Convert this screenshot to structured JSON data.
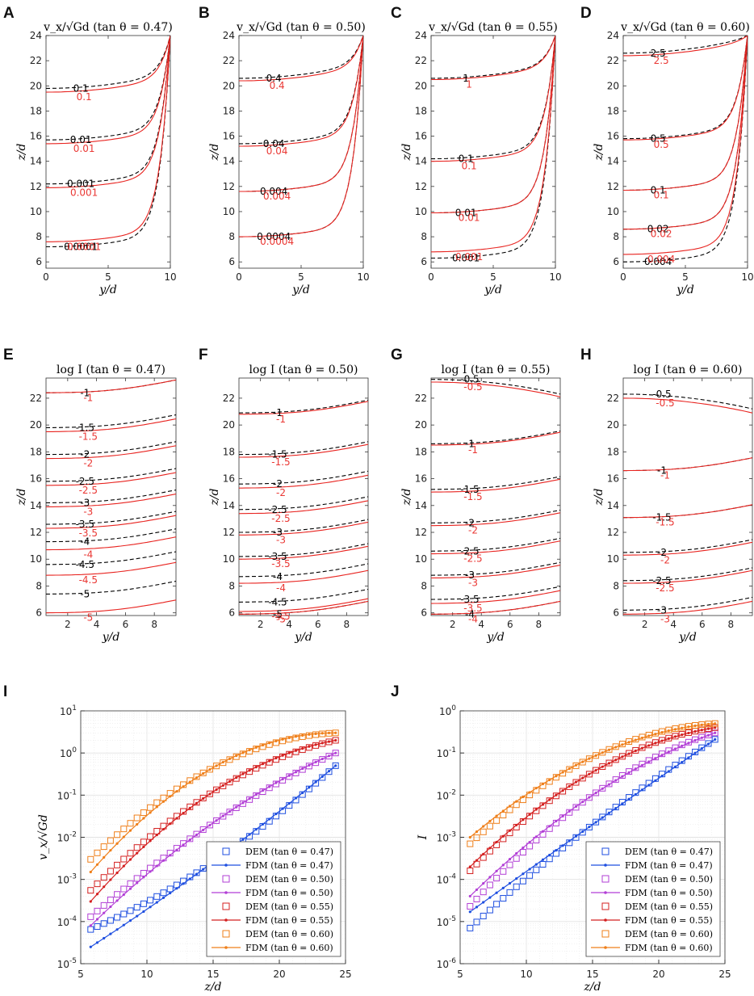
{
  "colors": {
    "sim_line": "#e8231f",
    "model_line": "#000000",
    "series": [
      "#1f4fe0",
      "#b23fd6",
      "#d42020",
      "#ef7f1a"
    ]
  },
  "chart_data": [
    {
      "id": "A",
      "type": "line",
      "subtype": "contour",
      "title": "v_x/√Gd  (tan θ = 0.47)",
      "xlabel": "y/d",
      "ylabel": "z/d",
      "xlim": [
        0,
        10
      ],
      "ylim": [
        5.5,
        24
      ],
      "xticks": [
        "0",
        "5",
        "10"
      ],
      "yticks": [
        "6",
        "8",
        "10",
        "12",
        "14",
        "16",
        "18",
        "20",
        "22",
        "24"
      ],
      "contours": [
        {
          "level_label": "0.1",
          "z_base": 19.5,
          "z_base_dashed": 19.8
        },
        {
          "level_label": "0.01",
          "z_base": 15.4,
          "z_base_dashed": 15.7
        },
        {
          "level_label": "0.001",
          "z_base": 11.9,
          "z_base_dashed": 12.2
        },
        {
          "level_label": "0.0001",
          "z_base": 7.6,
          "z_base_dashed": 7.2
        }
      ]
    },
    {
      "id": "B",
      "type": "line",
      "subtype": "contour",
      "title": "v_x/√Gd  (tan θ = 0.50)",
      "xlabel": "y/d",
      "ylabel": "z/d",
      "xlim": [
        0,
        10
      ],
      "ylim": [
        5.5,
        24
      ],
      "xticks": [
        "0",
        "5",
        "10"
      ],
      "yticks": [
        "6",
        "8",
        "10",
        "12",
        "14",
        "16",
        "18",
        "20",
        "22",
        "24"
      ],
      "contours": [
        {
          "level_label": "0.4",
          "z_base": 20.4,
          "z_base_dashed": 20.6
        },
        {
          "level_label": "0.04",
          "z_base": 15.2,
          "z_base_dashed": 15.4
        },
        {
          "level_label": "0.004",
          "z_base": 11.6,
          "z_base_dashed": 11.6
        },
        {
          "level_label": "0.0004",
          "z_base": 8.0,
          "z_base_dashed": 8.0
        }
      ]
    },
    {
      "id": "C",
      "type": "line",
      "subtype": "contour",
      "title": "v_x/√Gd  (tan θ = 0.55)",
      "xlabel": "y/d",
      "ylabel": "z/d",
      "xlim": [
        0,
        10
      ],
      "ylim": [
        5.5,
        24
      ],
      "xticks": [
        "0",
        "5",
        "10"
      ],
      "yticks": [
        "6",
        "8",
        "10",
        "12",
        "14",
        "16",
        "18",
        "20",
        "22",
        "24"
      ],
      "contours": [
        {
          "level_label": "1",
          "z_base": 20.5,
          "z_base_dashed": 20.6
        },
        {
          "level_label": "0.1",
          "z_base": 14.0,
          "z_base_dashed": 14.2
        },
        {
          "level_label": "0.01",
          "z_base": 9.9,
          "z_base_dashed": 9.9
        },
        {
          "level_label": "0.001",
          "z_base": 6.8,
          "z_base_dashed": 6.3
        }
      ]
    },
    {
      "id": "D",
      "type": "line",
      "subtype": "contour",
      "title": "v_x/√Gd  (tan θ = 0.60)",
      "xlabel": "y/d",
      "ylabel": "z/d",
      "xlim": [
        0,
        10
      ],
      "ylim": [
        5.5,
        24
      ],
      "xticks": [
        "0",
        "5",
        "10"
      ],
      "yticks": [
        "6",
        "8",
        "10",
        "12",
        "14",
        "16",
        "18",
        "20",
        "22",
        "24"
      ],
      "contours": [
        {
          "level_label": "2.5",
          "z_base": 22.4,
          "z_base_dashed": 22.6
        },
        {
          "level_label": "0.5",
          "z_base": 15.7,
          "z_base_dashed": 15.8
        },
        {
          "level_label": "0.1",
          "z_base": 11.7,
          "z_base_dashed": 11.7
        },
        {
          "level_label": "0.02",
          "z_base": 8.6,
          "z_base_dashed": 8.6
        },
        {
          "level_label": "0.004",
          "z_base": 6.6,
          "z_base_dashed": 6.0
        }
      ]
    },
    {
      "id": "E",
      "type": "line",
      "subtype": "contour",
      "title": "log I (tan θ = 0.47)",
      "xlabel": "y/d",
      "ylabel": "z/d",
      "xlim": [
        0.5,
        9.5
      ],
      "ylim": [
        5.8,
        23.5
      ],
      "xticks": [
        "2",
        "4",
        "6",
        "8"
      ],
      "yticks": [
        "6",
        "8",
        "10",
        "12",
        "14",
        "16",
        "18",
        "20",
        "22"
      ],
      "contours": [
        {
          "level_label": "-1",
          "z_base": 22.4,
          "z_base_dashed": 22.4
        },
        {
          "level_label": "-1.5",
          "z_base": 19.5,
          "z_base_dashed": 19.8
        },
        {
          "level_label": "-2",
          "z_base": 17.5,
          "z_base_dashed": 17.8
        },
        {
          "level_label": "-2.5",
          "z_base": 15.5,
          "z_base_dashed": 15.8
        },
        {
          "level_label": "-3",
          "z_base": 13.9,
          "z_base_dashed": 14.2
        },
        {
          "level_label": "-3.5",
          "z_base": 12.3,
          "z_base_dashed": 12.6
        },
        {
          "level_label": "-4",
          "z_base": 10.7,
          "z_base_dashed": 11.3
        },
        {
          "level_label": "-4.5",
          "z_base": 8.8,
          "z_base_dashed": 9.6
        },
        {
          "level_label": "-5",
          "z_base": 6.0,
          "z_base_dashed": 7.4
        }
      ]
    },
    {
      "id": "F",
      "type": "line",
      "subtype": "contour",
      "title": "log I (tan θ = 0.50)",
      "xlabel": "y/d",
      "ylabel": "z/d",
      "xlim": [
        0.5,
        9.5
      ],
      "ylim": [
        5.8,
        23.5
      ],
      "xticks": [
        "2",
        "4",
        "6",
        "8"
      ],
      "yticks": [
        "6",
        "8",
        "10",
        "12",
        "14",
        "16",
        "18",
        "20",
        "22"
      ],
      "contours": [
        {
          "level_label": "-1",
          "z_base": 20.8,
          "z_base_dashed": 20.9
        },
        {
          "level_label": "-1.5",
          "z_base": 17.6,
          "z_base_dashed": 17.8
        },
        {
          "level_label": "-2",
          "z_base": 15.3,
          "z_base_dashed": 15.6
        },
        {
          "level_label": "-2.5",
          "z_base": 13.4,
          "z_base_dashed": 13.7
        },
        {
          "level_label": "-3",
          "z_base": 11.8,
          "z_base_dashed": 12.0
        },
        {
          "level_label": "-3.5",
          "z_base": 10.0,
          "z_base_dashed": 10.2
        },
        {
          "level_label": "-4",
          "z_base": 8.2,
          "z_base_dashed": 8.7
        },
        {
          "level_label": "-4.5",
          "z_base": 6.1,
          "z_base_dashed": 6.8
        },
        {
          "level_label": "-5",
          "z_base": 5.9,
          "z_base_dashed": 5.9
        }
      ]
    },
    {
      "id": "G",
      "type": "line",
      "subtype": "contour",
      "title": "log I (tan θ = 0.55)",
      "xlabel": "y/d",
      "ylabel": "z/d",
      "xlim": [
        0.5,
        9.5
      ],
      "ylim": [
        5.8,
        23.5
      ],
      "xticks": [
        "2",
        "4",
        "6",
        "8"
      ],
      "yticks": [
        "6",
        "8",
        "10",
        "12",
        "14",
        "16",
        "18",
        "20",
        "22"
      ],
      "contours": [
        {
          "level_label": "-0.5",
          "z_base": 23.2,
          "z_base_dashed": 23.4
        },
        {
          "level_label": "-1",
          "z_base": 18.5,
          "z_base_dashed": 18.6
        },
        {
          "level_label": "-1.5",
          "z_base": 15.0,
          "z_base_dashed": 15.2
        },
        {
          "level_label": "-2",
          "z_base": 12.5,
          "z_base_dashed": 12.7
        },
        {
          "level_label": "-2.5",
          "z_base": 10.4,
          "z_base_dashed": 10.6
        },
        {
          "level_label": "-3",
          "z_base": 8.6,
          "z_base_dashed": 8.8
        },
        {
          "level_label": "-3.5",
          "z_base": 6.7,
          "z_base_dashed": 7.0
        },
        {
          "level_label": "-4",
          "z_base": 5.9,
          "z_base_dashed": 5.9
        }
      ]
    },
    {
      "id": "H",
      "type": "line",
      "subtype": "contour",
      "title": "log I (tan θ = 0.60)",
      "xlabel": "y/d",
      "ylabel": "z/d",
      "xlim": [
        0.5,
        9.5
      ],
      "ylim": [
        5.8,
        23.5
      ],
      "xticks": [
        "2",
        "4",
        "6",
        "8"
      ],
      "yticks": [
        "6",
        "8",
        "10",
        "12",
        "14",
        "16",
        "18",
        "20",
        "22"
      ],
      "contours": [
        {
          "level_label": "-0.5",
          "z_base": 22.0,
          "z_base_dashed": 22.3
        },
        {
          "level_label": "-1",
          "z_base": 16.6,
          "z_base_dashed": 16.6
        },
        {
          "level_label": "-1.5",
          "z_base": 13.1,
          "z_base_dashed": 13.1
        },
        {
          "level_label": "-2",
          "z_base": 10.3,
          "z_base_dashed": 10.5
        },
        {
          "level_label": "-2.5",
          "z_base": 8.2,
          "z_base_dashed": 8.4
        },
        {
          "level_label": "-3",
          "z_base": 5.9,
          "z_base_dashed": 6.2
        }
      ]
    },
    {
      "id": "I",
      "type": "scatter",
      "yscale": "log",
      "title": "",
      "xlabel": "z/d",
      "ylabel": "v_x/√Gd",
      "xlim": [
        5,
        25
      ],
      "ylim_exp": [
        -5,
        1
      ],
      "xticks": [
        "5",
        "10",
        "15",
        "20",
        "25"
      ],
      "yticks": [
        "10^-5",
        "10^-4",
        "10^-3",
        "10^-2",
        "10^-1",
        "10^0",
        "10^1"
      ],
      "legend_position": "bottom-right",
      "series": [
        {
          "name": "tan θ = 0.47",
          "legend_dem": "DEM (tan θ = 0.47)",
          "legend_fdm": "FDM (tan θ = 0.47)",
          "dem_start": 6.5e-05,
          "fdm_start": 2.5e-05,
          "end": 0.5,
          "mid": 0.0026
        },
        {
          "name": "tan θ = 0.50",
          "legend_dem": "DEM (tan θ = 0.50)",
          "legend_fdm": "FDM (tan θ = 0.50)",
          "dem_start": 0.00013,
          "fdm_start": 8e-05,
          "end": 1.0,
          "mid": 0.022
        },
        {
          "name": "tan θ = 0.55",
          "legend_dem": "DEM (tan θ = 0.55)",
          "legend_fdm": "FDM (tan θ = 0.55)",
          "dem_start": 0.00055,
          "fdm_start": 0.0003,
          "end": 2.0,
          "mid": 0.12
        },
        {
          "name": "tan θ = 0.60",
          "legend_dem": "DEM (tan θ = 0.60)",
          "legend_fdm": "FDM (tan θ = 0.60)",
          "dem_start": 0.003,
          "fdm_start": 0.0015,
          "end": 3.0,
          "mid": 0.45
        }
      ]
    },
    {
      "id": "J",
      "type": "scatter",
      "yscale": "log",
      "title": "",
      "xlabel": "z/d",
      "ylabel": "I",
      "xlim": [
        5,
        25
      ],
      "ylim_exp": [
        -6,
        0
      ],
      "xticks": [
        "5",
        "10",
        "15",
        "20",
        "25"
      ],
      "yticks": [
        "10^-6",
        "10^-5",
        "10^-4",
        "10^-3",
        "10^-2",
        "10^-1",
        "10^0"
      ],
      "legend_position": "bottom-right",
      "series": [
        {
          "name": "tan θ = 0.47",
          "legend_dem": "DEM (tan θ = 0.47)",
          "legend_fdm": "FDM (tan θ = 0.47)",
          "dem_start": 7e-06,
          "fdm_start": 1.7e-05,
          "end": 0.21,
          "mid": 0.002
        },
        {
          "name": "tan θ = 0.50",
          "legend_dem": "DEM (tan θ = 0.50)",
          "legend_fdm": "FDM (tan θ = 0.50)",
          "dem_start": 2.3e-05,
          "fdm_start": 4e-05,
          "end": 0.3,
          "mid": 0.01
        },
        {
          "name": "tan θ = 0.55",
          "legend_dem": "DEM (tan θ = 0.55)",
          "legend_fdm": "FDM (tan θ = 0.55)",
          "dem_start": 0.00016,
          "fdm_start": 0.0002,
          "end": 0.4,
          "mid": 0.035
        },
        {
          "name": "tan θ = 0.60",
          "legend_dem": "DEM (tan θ = 0.60)",
          "legend_fdm": "FDM (tan θ = 0.60)",
          "dem_start": 0.0007,
          "fdm_start": 0.001,
          "end": 0.5,
          "mid": 0.08
        }
      ]
    }
  ]
}
